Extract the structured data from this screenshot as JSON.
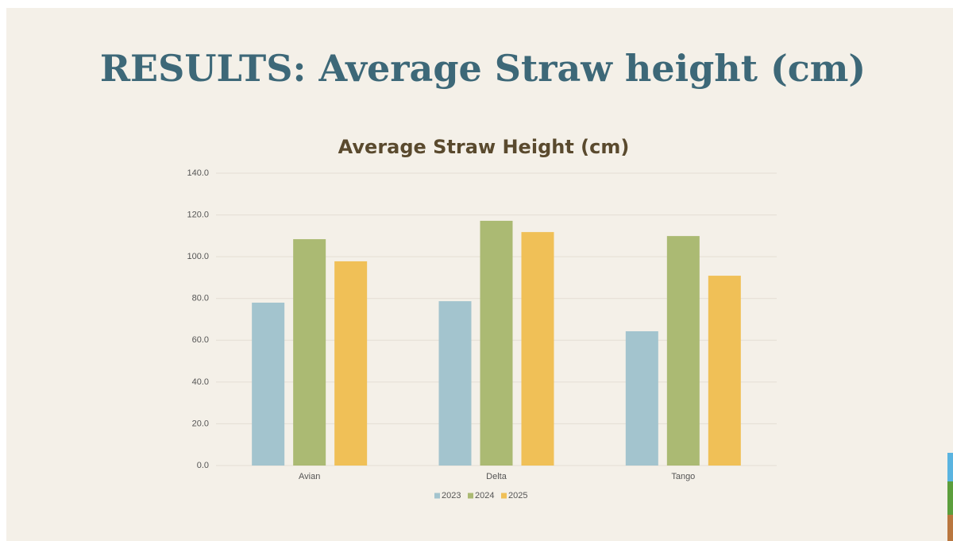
{
  "slide": {
    "title": "RESULTS: Average Straw height (cm)"
  },
  "chart_data": {
    "type": "bar",
    "title": "Average Straw Height (cm)",
    "categories": [
      "Avian",
      "Delta",
      "Tango"
    ],
    "series": [
      {
        "name": "2023",
        "color": "#a3c4ce",
        "values": [
          78.0,
          78.7,
          64.3
        ]
      },
      {
        "name": "2024",
        "color": "#abba73",
        "values": [
          108.4,
          117.2,
          109.9
        ]
      },
      {
        "name": "2025",
        "color": "#f0c057",
        "values": [
          97.8,
          111.8,
          90.9
        ]
      }
    ],
    "ylim": [
      0,
      140
    ],
    "yticks": [
      {
        "value": 0,
        "label": "0.0"
      },
      {
        "value": 20,
        "label": "20.0"
      },
      {
        "value": 40,
        "label": "40.0"
      },
      {
        "value": 60,
        "label": "60.0"
      },
      {
        "value": 80,
        "label": "80.0"
      },
      {
        "value": 100,
        "label": "100.0"
      },
      {
        "value": 120,
        "label": "120.0"
      },
      {
        "value": 140,
        "label": "140.0"
      }
    ],
    "grid": true,
    "legend": "bottom"
  }
}
